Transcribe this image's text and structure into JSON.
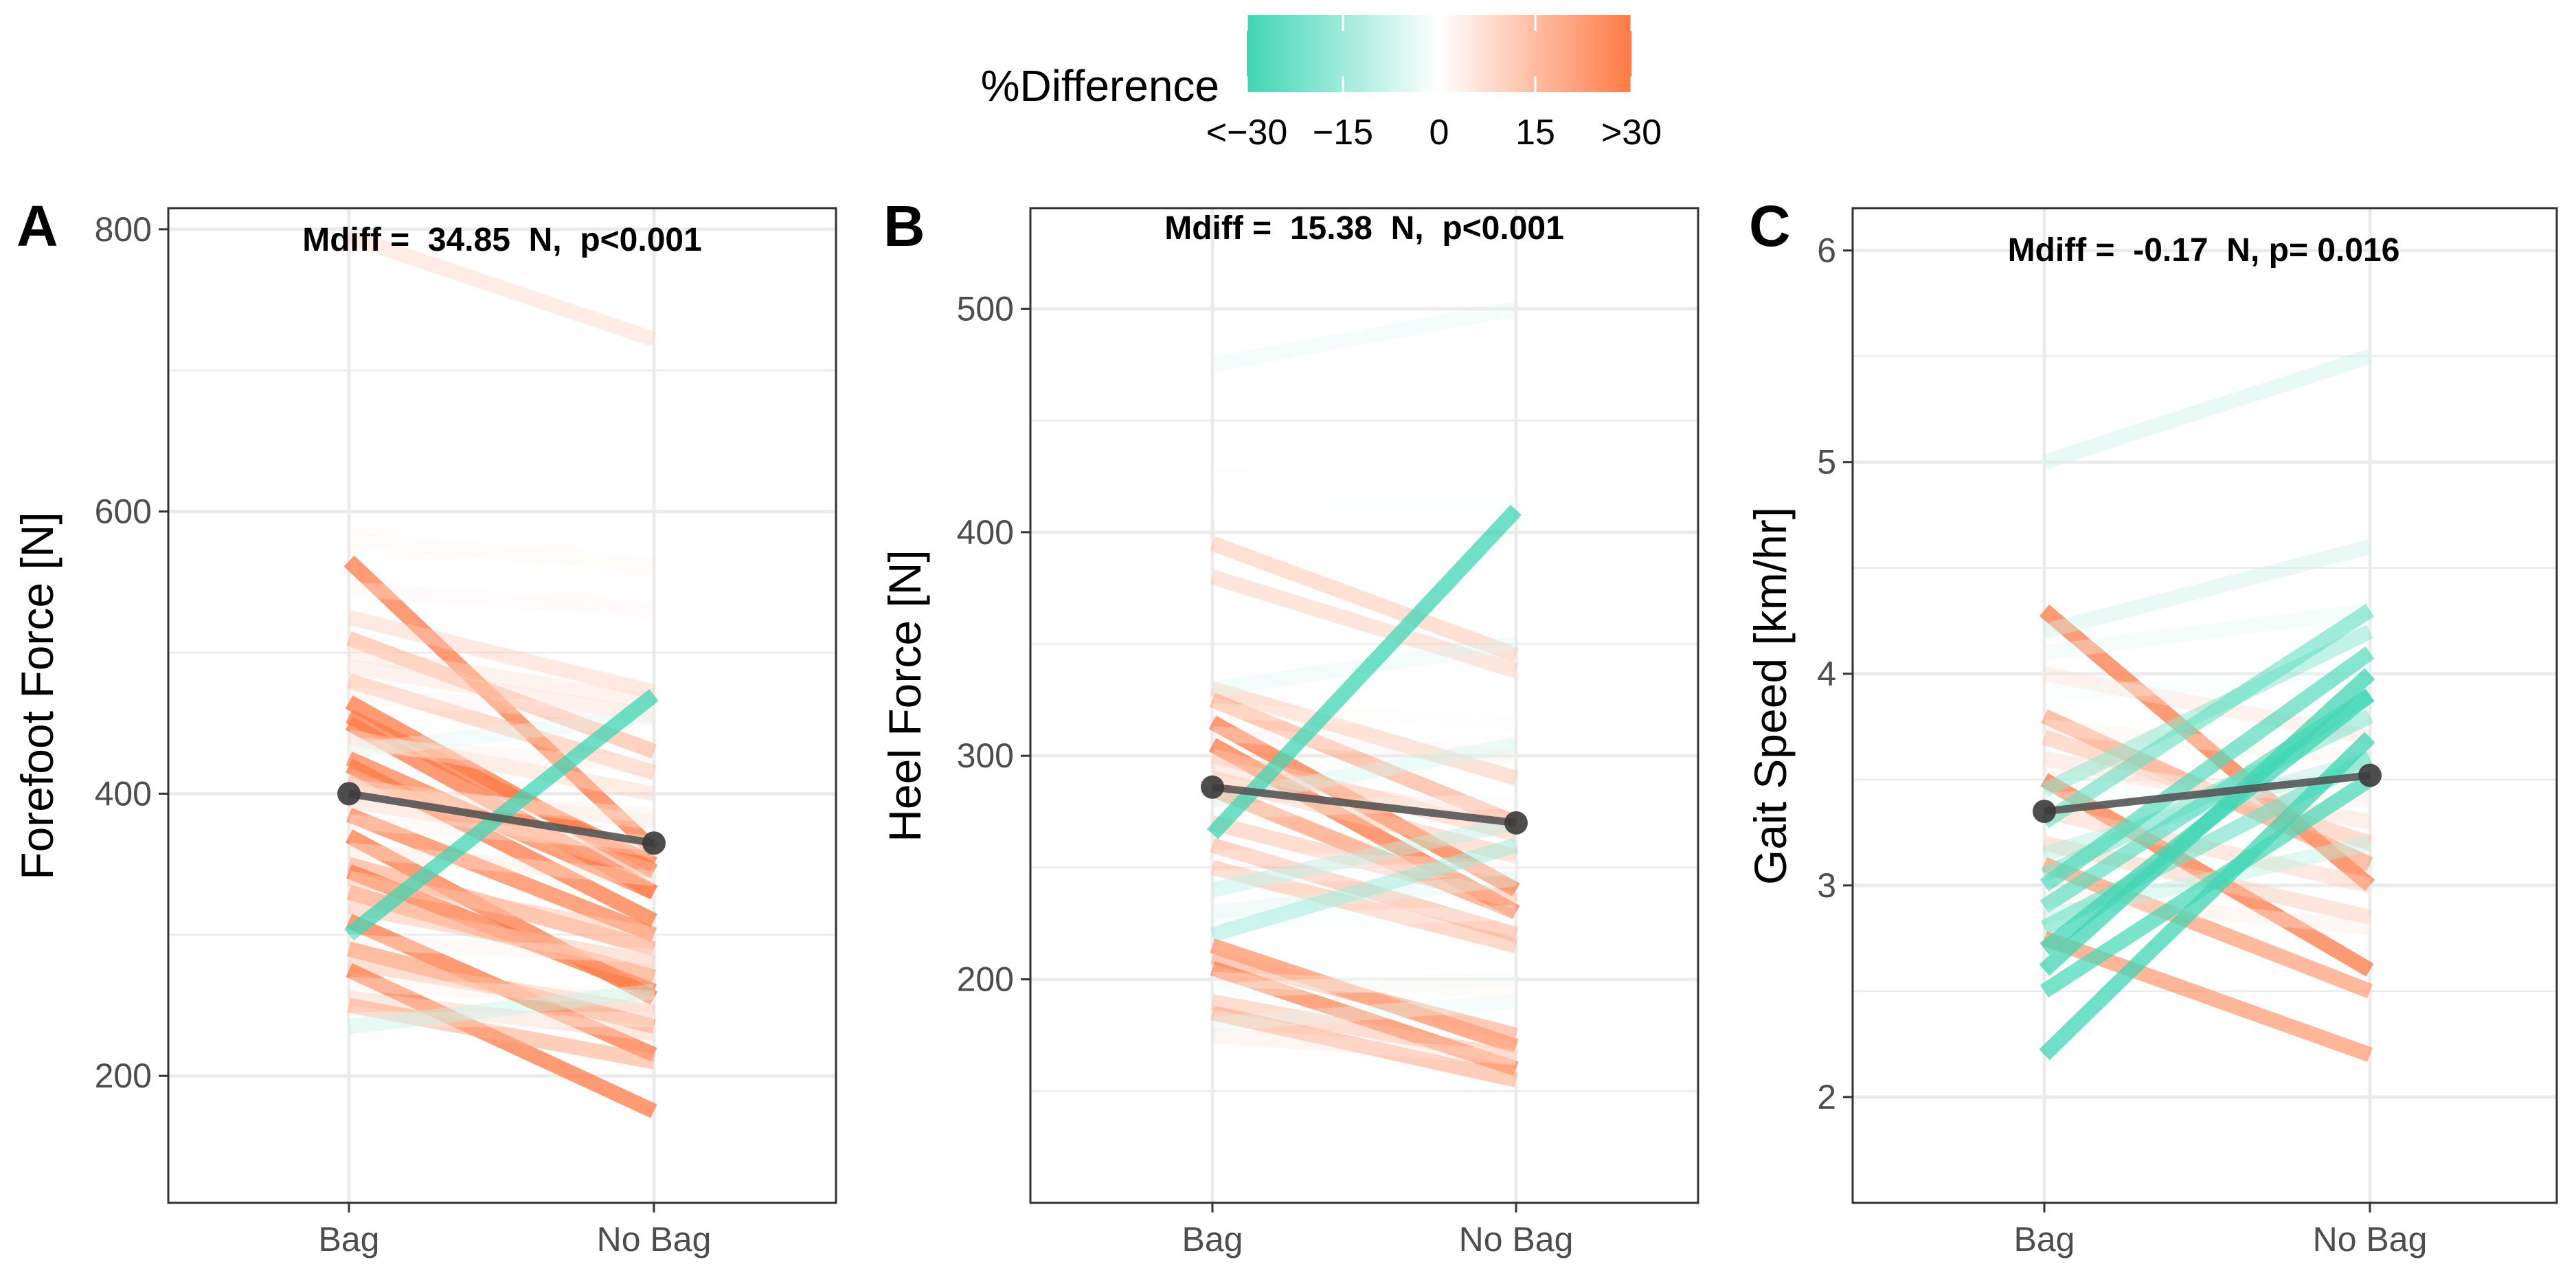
{
  "legend": {
    "title": "%Difference",
    "tick_labels": [
      "<−30",
      "−15",
      "0",
      "15",
      ">30"
    ],
    "tick_values": [
      -30,
      -15,
      0,
      15,
      30
    ],
    "colors": {
      "low": "#3fd6b4",
      "mid": "#ffffff",
      "high": "#ff7a45"
    }
  },
  "colors": {
    "mean_line": "#555555",
    "mean_point": "#3a3a3a",
    "grid": "#ebebeb",
    "panel_border": "#333333"
  },
  "chart_data": [
    {
      "type": "line",
      "panel_label": "A",
      "annotation": "Mdiff =  34.85  N,  p<0.001",
      "ylabel": "Forefoot Force [N]",
      "xlabel": "",
      "categories": [
        "Bag",
        "No Bag"
      ],
      "ylim": [
        110,
        815
      ],
      "yticks": [
        200,
        400,
        600,
        800
      ],
      "ytick_labels": [
        "200",
        "400",
        "600",
        "800"
      ],
      "mean": [
        400,
        365
      ],
      "subjects": [
        [
          795,
          722
        ],
        [
          580,
          562
        ],
        [
          565,
          360
        ],
        [
          545,
          530
        ],
        [
          525,
          472
        ],
        [
          510,
          430
        ],
        [
          500,
          465
        ],
        [
          490,
          455
        ],
        [
          480,
          415
        ],
        [
          470,
          455
        ],
        [
          465,
          345
        ],
        [
          455,
          350
        ],
        [
          450,
          330
        ],
        [
          440,
          400
        ],
        [
          435,
          420
        ],
        [
          430,
          455
        ],
        [
          425,
          330
        ],
        [
          420,
          310
        ],
        [
          410,
          345
        ],
        [
          405,
          380
        ],
        [
          400,
          385
        ],
        [
          395,
          360
        ],
        [
          385,
          300
        ],
        [
          380,
          365
        ],
        [
          370,
          255
        ],
        [
          360,
          340
        ],
        [
          350,
          290
        ],
        [
          345,
          260
        ],
        [
          340,
          300
        ],
        [
          330,
          270
        ],
        [
          320,
          280
        ],
        [
          310,
          215
        ],
        [
          300,
          470
        ],
        [
          295,
          285
        ],
        [
          290,
          235
        ],
        [
          280,
          245
        ],
        [
          275,
          175
        ],
        [
          265,
          255
        ],
        [
          255,
          230
        ],
        [
          250,
          210
        ],
        [
          240,
          240
        ],
        [
          235,
          260
        ]
      ]
    },
    {
      "type": "line",
      "panel_label": "B",
      "annotation": "Mdiff =  15.38  N,  p<0.001",
      "ylabel": "Heel Force [N]",
      "xlabel": "",
      "categories": [
        "Bag",
        "No Bag"
      ],
      "ylim": [
        100,
        545
      ],
      "yticks": [
        200,
        300,
        400,
        500
      ],
      "ytick_labels": [
        "200",
        "300",
        "400",
        "500"
      ],
      "mean": [
        286,
        270
      ],
      "subjects": [
        [
          475,
          500
        ],
        [
          425,
          422
        ],
        [
          410,
          412
        ],
        [
          395,
          345
        ],
        [
          380,
          338
        ],
        [
          330,
          290
        ],
        [
          330,
          350
        ],
        [
          325,
          270
        ],
        [
          320,
          315
        ],
        [
          315,
          240
        ],
        [
          310,
          300
        ],
        [
          305,
          230
        ],
        [
          300,
          265
        ],
        [
          295,
          270
        ],
        [
          290,
          255
        ],
        [
          285,
          230
        ],
        [
          280,
          305
        ],
        [
          275,
          280
        ],
        [
          270,
          235
        ],
        [
          265,
          410
        ],
        [
          260,
          220
        ],
        [
          255,
          250
        ],
        [
          250,
          215
        ],
        [
          245,
          250
        ],
        [
          240,
          270
        ],
        [
          230,
          245
        ],
        [
          225,
          230
        ],
        [
          220,
          260
        ],
        [
          215,
          170
        ],
        [
          210,
          175
        ],
        [
          205,
          160
        ],
        [
          200,
          195
        ],
        [
          195,
          200
        ],
        [
          190,
          165
        ],
        [
          185,
          155
        ],
        [
          180,
          190
        ],
        [
          175,
          165
        ]
      ]
    },
    {
      "type": "line",
      "panel_label": "C",
      "annotation": "Mdiff =  -0.17  N, p= 0.016",
      "ylabel": "Gait Speed [km/hr]",
      "xlabel": "",
      "categories": [
        "Bag",
        "No Bag"
      ],
      "ylim": [
        1.5,
        6.2
      ],
      "yticks": [
        2,
        3,
        4,
        5,
        6
      ],
      "ytick_labels": [
        "2",
        "3",
        "4",
        "5",
        "6"
      ],
      "mean": [
        3.35,
        3.52
      ],
      "subjects": [
        [
          5.0,
          5.5
        ],
        [
          4.3,
          3.0
        ],
        [
          4.2,
          4.6
        ],
        [
          4.1,
          4.3
        ],
        [
          4.0,
          3.7
        ],
        [
          3.9,
          4.0
        ],
        [
          3.8,
          3.1
        ],
        [
          3.75,
          3.6
        ],
        [
          3.7,
          3.2
        ],
        [
          3.6,
          3.3
        ],
        [
          3.55,
          3.4
        ],
        [
          3.5,
          2.6
        ],
        [
          3.45,
          4.2
        ],
        [
          3.4,
          3.5
        ],
        [
          3.35,
          3.0
        ],
        [
          3.3,
          4.3
        ],
        [
          3.2,
          2.85
        ],
        [
          3.15,
          3.6
        ],
        [
          3.1,
          2.5
        ],
        [
          3.05,
          3.8
        ],
        [
          3.0,
          4.1
        ],
        [
          2.95,
          2.8
        ],
        [
          2.9,
          3.9
        ],
        [
          2.85,
          3.2
        ],
        [
          2.8,
          3.6
        ],
        [
          2.75,
          2.2
        ],
        [
          2.7,
          3.9
        ],
        [
          2.6,
          4.0
        ],
        [
          2.5,
          3.5
        ],
        [
          2.2,
          3.7
        ]
      ]
    }
  ]
}
